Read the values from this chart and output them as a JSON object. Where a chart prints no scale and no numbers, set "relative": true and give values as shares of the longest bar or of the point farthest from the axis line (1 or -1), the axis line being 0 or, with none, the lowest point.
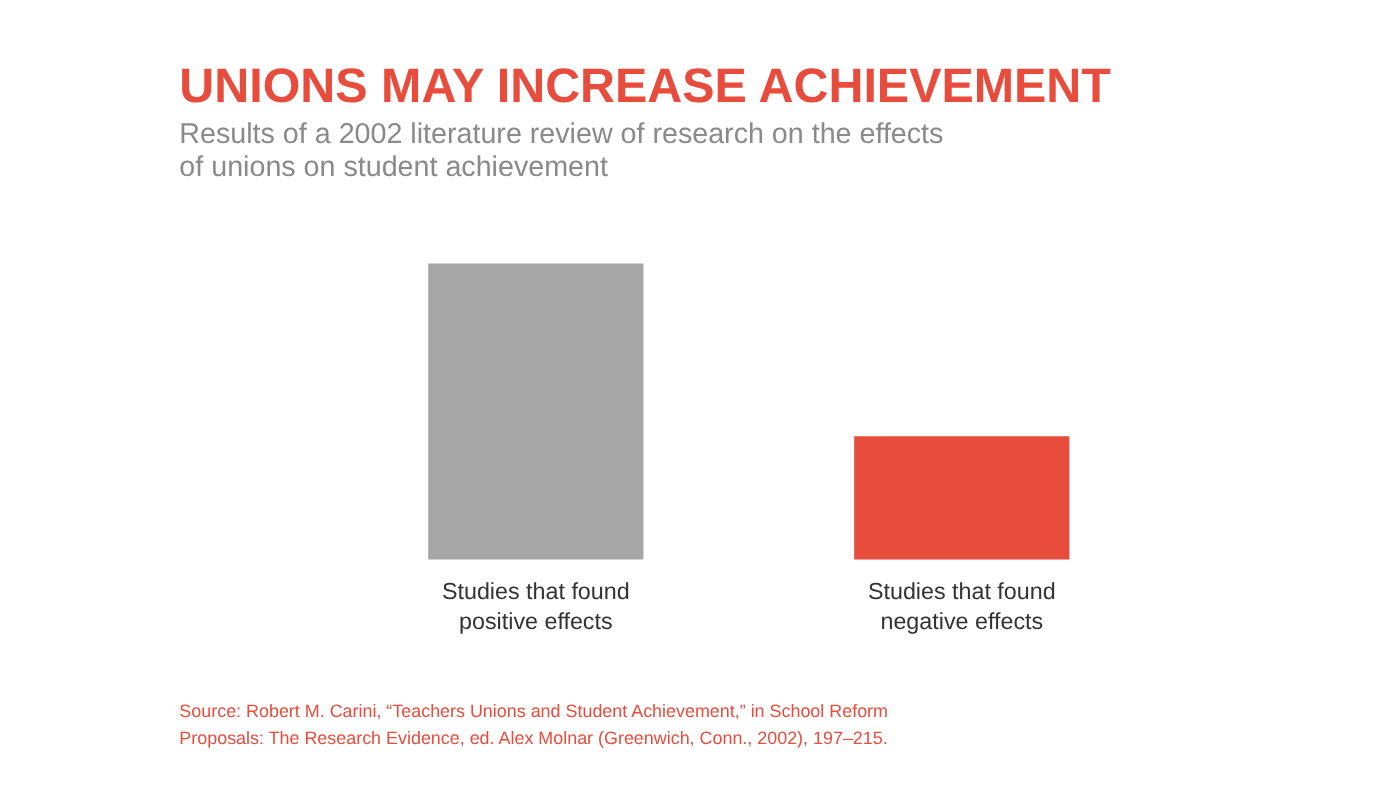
{
  "chart_data": {
    "type": "bar",
    "title": "UNIONS MAY INCREASE ACHIEVEMENT",
    "subtitle": "Results of a 2002 literature review of research on the effects of unions on student achievement",
    "categories": [
      "Studies that found positive effects",
      "Studies that found negative effects"
    ],
    "values": [
      1,
      0.4167
    ],
    "colors": [
      "#a6a6a6",
      "#e84c3d"
    ],
    "relative": true,
    "annotations": [
      "Source: Robert M. Carini, “Teachers Unions and Student Achievement,” in School Reform Proposals: The Research Evidence, ed. Alex Molnar (Greenwich, Conn., 2002), 197–215."
    ]
  }
}
